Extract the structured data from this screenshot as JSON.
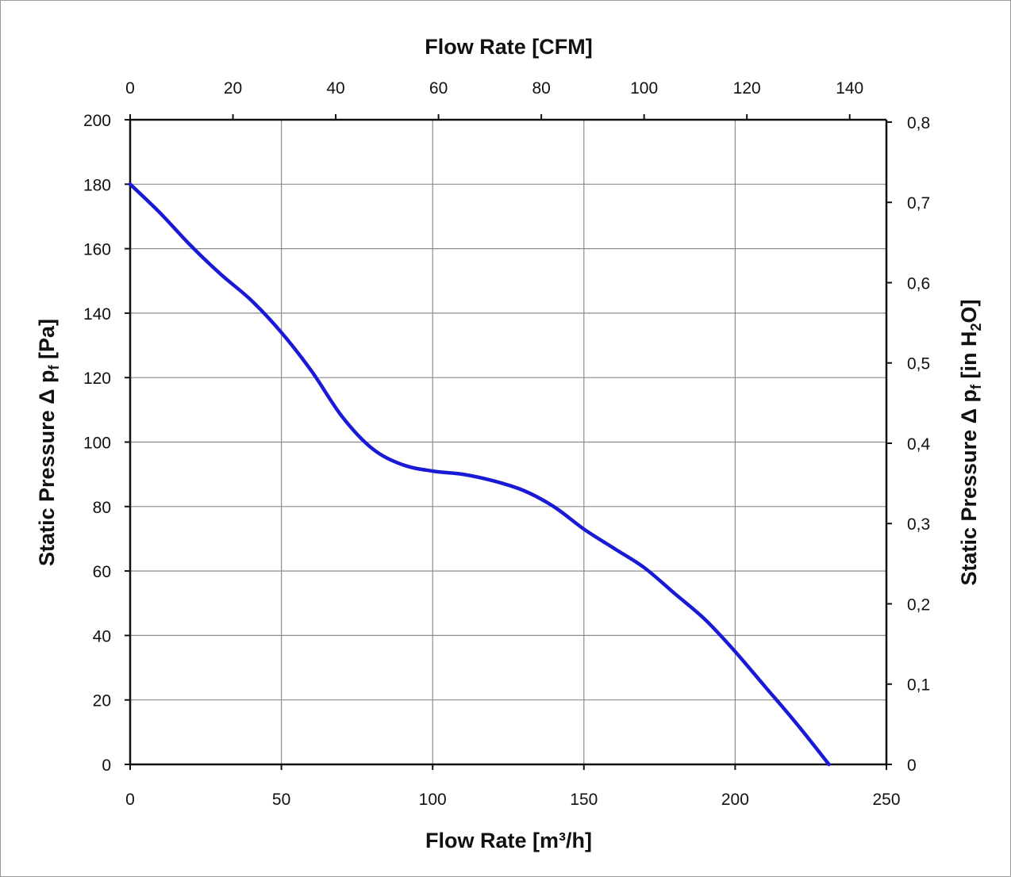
{
  "chart_data": {
    "type": "line",
    "top_axis_title": "Flow Rate [CFM]",
    "bottom_axis_title": "Flow Rate [m³/h]",
    "left_axis_title": "Static Pressure Δ p",
    "left_axis_title_sub": "f",
    "left_axis_title_unit": " [Pa]",
    "right_axis_title": "Static Pressure Δ p",
    "right_axis_title_sub": "f",
    "right_axis_title_unit": " [in H",
    "right_axis_title_sub2": "2",
    "right_axis_title_end": "O]",
    "xlim": [
      0,
      250
    ],
    "ylim": [
      0,
      200
    ],
    "x_ticks": [
      "0",
      "50",
      "100",
      "150",
      "200",
      "250"
    ],
    "y_ticks": [
      "0",
      "20",
      "40",
      "60",
      "80",
      "100",
      "120",
      "140",
      "160",
      "180",
      "200"
    ],
    "top_ticks": [
      "0",
      "20",
      "40",
      "60",
      "80",
      "100",
      "120",
      "140"
    ],
    "right_ticks": [
      "0",
      "0,1",
      "0,2",
      "0,3",
      "0,4",
      "0,5",
      "0,6",
      "0,7",
      "0,8"
    ],
    "grid": true,
    "series": [
      {
        "color": "#1a1ad6",
        "x": [
          0,
          10,
          20,
          30,
          40,
          50,
          60,
          70,
          80,
          90,
          100,
          110,
          120,
          130,
          140,
          150,
          160,
          170,
          180,
          190,
          200,
          210,
          220,
          231
        ],
        "y": [
          180,
          171,
          161,
          152,
          144,
          134,
          122,
          108,
          98,
          93,
          91,
          90,
          88,
          85,
          80,
          73,
          67,
          61,
          53,
          45,
          35,
          24,
          13,
          0
        ]
      }
    ]
  }
}
